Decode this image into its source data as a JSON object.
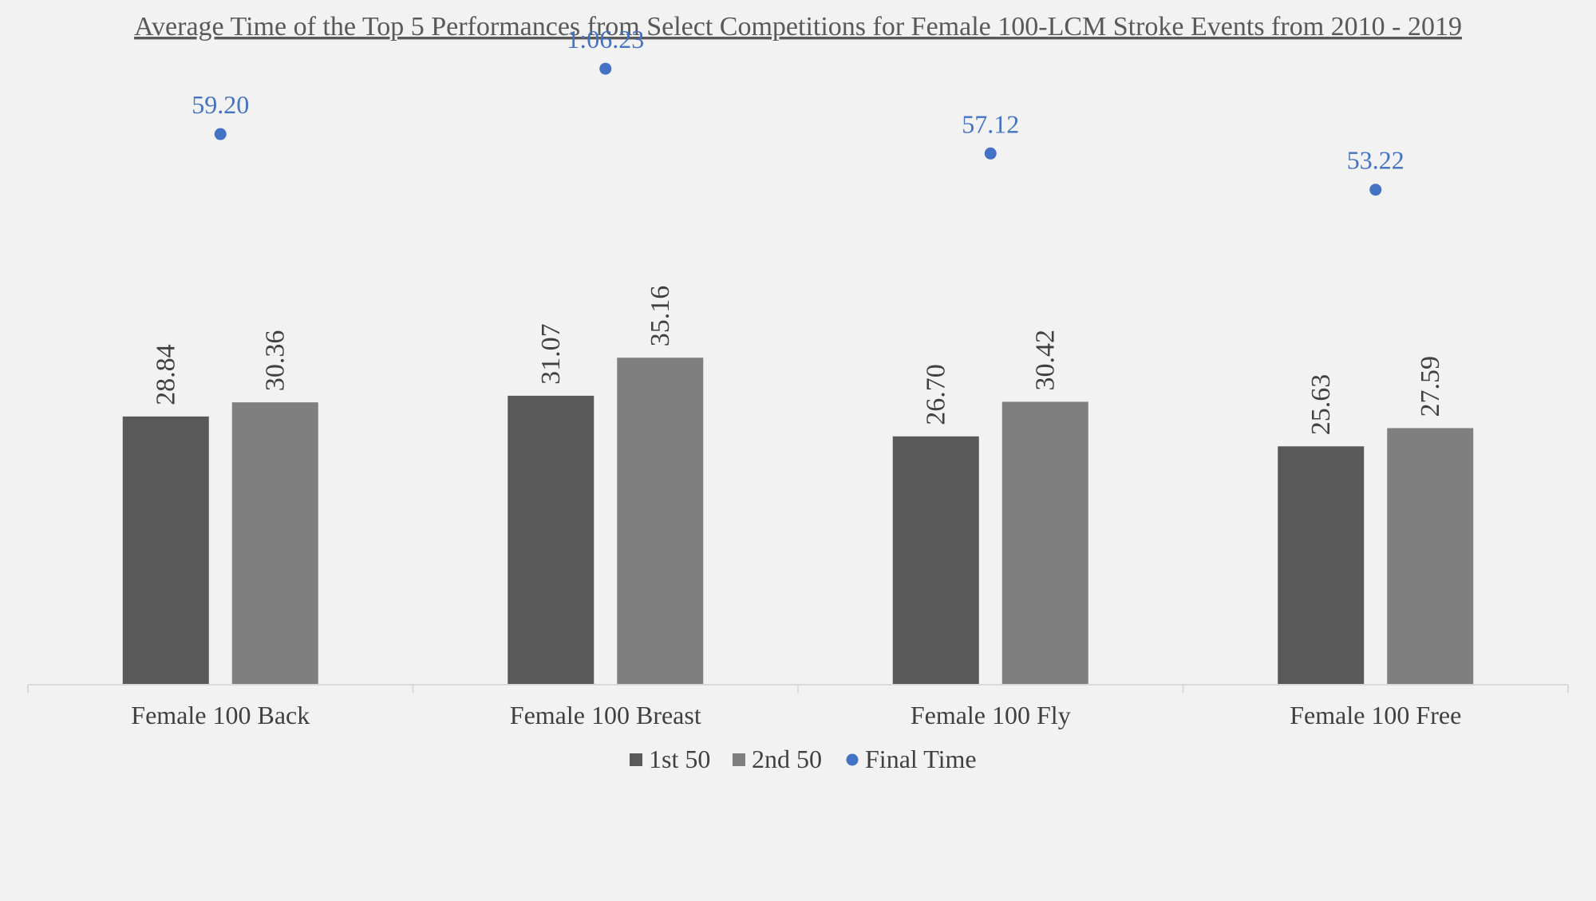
{
  "chart_data": {
    "type": "bar",
    "title": "Average Time of the Top 5 Performances from Select Competitions for Female 100-LCM Stroke Events from 2010 - 2019",
    "categories": [
      "Female 100 Back",
      "Female 100 Breast",
      "Female 100 Fly",
      "Female 100 Free"
    ],
    "series": [
      {
        "name": "1st 50",
        "kind": "bar",
        "color": "#595959",
        "values": [
          28.84,
          31.07,
          26.7,
          25.63
        ],
        "labels": [
          "28.84",
          "31.07",
          "26.70",
          "25.63"
        ]
      },
      {
        "name": "2nd 50",
        "kind": "bar",
        "color": "#7f7f7f",
        "values": [
          30.36,
          35.16,
          30.42,
          27.59
        ],
        "labels": [
          "30.36",
          "35.16",
          "30.42",
          "27.59"
        ]
      },
      {
        "name": "Final Time",
        "kind": "scatter",
        "color": "#4472c4",
        "values": [
          59.2,
          66.23,
          57.12,
          53.22
        ],
        "labels": [
          "59.20",
          "1:06.23",
          "57.12",
          "53.22"
        ]
      }
    ],
    "ylim": [
      0,
      75
    ],
    "grid": false,
    "legend_position": "bottom"
  }
}
